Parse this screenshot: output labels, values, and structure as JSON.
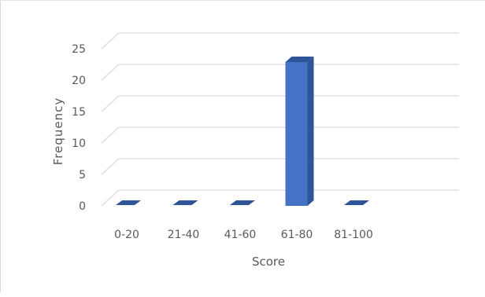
{
  "chart_data": {
    "type": "bar",
    "style": "3d-column",
    "title": "",
    "xlabel": "Score",
    "ylabel": "Frequency",
    "categories": [
      "0-20",
      "21-40",
      "41-60",
      "61-80",
      "81-100"
    ],
    "values": [
      0,
      0,
      0,
      23,
      0
    ],
    "yticks": [
      0,
      5,
      10,
      15,
      20,
      25
    ],
    "ylim": [
      0,
      27
    ],
    "grid": true,
    "legend": "none",
    "colors": {
      "bar_front": "#4472C4",
      "bar_side": "#2F5597",
      "bar_top": "#2E5597",
      "grid": "#d9d9d9",
      "text": "#595959"
    }
  }
}
